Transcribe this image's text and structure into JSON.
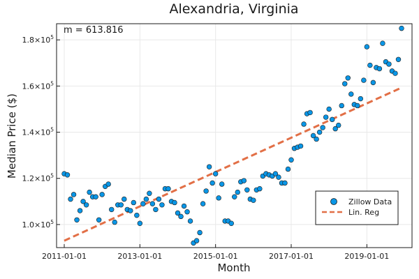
{
  "chart_data": {
    "type": "scatter",
    "title": "Alexandria, Virginia",
    "xlabel": "Month",
    "ylabel": "Median Price ($)",
    "x_tick_labels": [
      "2011-01-01",
      "2013-01-01",
      "2015-01-01",
      "2017-01-01",
      "2019-01-01"
    ],
    "y_tick_exponent": "5",
    "y_tick_mantissas": [
      "1.0×10",
      "1.2×10",
      "1.4×10",
      "1.6×10",
      "1.8×10"
    ],
    "y_ticks": [
      100000,
      120000,
      140000,
      160000,
      180000
    ],
    "ylim": [
      90000,
      187000
    ],
    "grid": true,
    "legend_position": "bottom-right",
    "annotation": "m = 613.816",
    "colors": {
      "scatter": "#0a96e6",
      "regression": "#e26f46",
      "grid": "#e8e8e8",
      "axis": "#1a1a1a"
    },
    "series": [
      {
        "name": "Zillow Data",
        "kind": "scatter",
        "x": [
          "2011-01",
          "2011-02",
          "2011-03",
          "2011-04",
          "2011-05",
          "2011-06",
          "2011-07",
          "2011-08",
          "2011-09",
          "2011-10",
          "2011-11",
          "2011-12",
          "2012-01",
          "2012-02",
          "2012-03",
          "2012-04",
          "2012-05",
          "2012-06",
          "2012-07",
          "2012-08",
          "2012-09",
          "2012-10",
          "2012-11",
          "2012-12",
          "2013-01",
          "2013-02",
          "2013-03",
          "2013-04",
          "2013-05",
          "2013-06",
          "2013-07",
          "2013-08",
          "2013-09",
          "2013-10",
          "2013-11",
          "2013-12",
          "2014-01",
          "2014-02",
          "2014-03",
          "2014-04",
          "2014-05",
          "2014-06",
          "2014-07",
          "2014-08",
          "2014-09",
          "2014-10",
          "2014-11",
          "2014-12",
          "2015-01",
          "2015-02",
          "2015-03",
          "2015-04",
          "2015-05",
          "2015-06",
          "2015-07",
          "2015-08",
          "2015-09",
          "2015-10",
          "2015-11",
          "2015-12",
          "2016-01",
          "2016-02",
          "2016-03",
          "2016-04",
          "2016-05",
          "2016-06",
          "2016-07",
          "2016-08",
          "2016-09",
          "2016-10",
          "2016-11",
          "2016-12",
          "2017-01",
          "2017-02",
          "2017-03",
          "2017-04",
          "2017-05",
          "2017-06",
          "2017-07",
          "2017-08",
          "2017-09",
          "2017-10",
          "2017-11",
          "2017-12",
          "2018-01",
          "2018-02",
          "2018-03",
          "2018-04",
          "2018-05",
          "2018-06",
          "2018-07",
          "2018-08",
          "2018-09",
          "2018-10",
          "2018-11",
          "2018-12",
          "2019-01",
          "2019-02",
          "2019-03",
          "2019-04",
          "2019-05",
          "2019-06",
          "2019-07",
          "2019-08",
          "2019-09",
          "2019-10",
          "2019-11",
          "2019-12"
        ],
        "y": [
          122000,
          121500,
          111000,
          113000,
          102000,
          106000,
          110000,
          108500,
          114000,
          112000,
          112000,
          102000,
          113000,
          116500,
          117500,
          106500,
          101000,
          108500,
          108500,
          111000,
          106500,
          106000,
          109500,
          104000,
          100500,
          109000,
          111000,
          113500,
          109000,
          106500,
          111000,
          108500,
          115500,
          115500,
          110000,
          109500,
          105000,
          103500,
          108000,
          105500,
          101500,
          92000,
          93000,
          96500,
          109000,
          114500,
          125000,
          118000,
          122000,
          111500,
          117500,
          101500,
          101500,
          100500,
          112000,
          114000,
          118500,
          119000,
          115000,
          111000,
          110500,
          115000,
          115500,
          121000,
          122000,
          121500,
          121000,
          122000,
          120500,
          118000,
          118000,
          124000,
          128000,
          133000,
          133500,
          134000,
          143500,
          148000,
          148500,
          138500,
          137000,
          140000,
          142000,
          146500,
          150000,
          145500,
          141500,
          143000,
          151500,
          161000,
          163500,
          156500,
          152000,
          151500,
          154500,
          162500,
          177000,
          169000,
          161500,
          168000,
          167500,
          178500,
          170500,
          169500,
          166500,
          165500,
          171500,
          185000
        ]
      },
      {
        "name": "Lin. Reg",
        "kind": "line",
        "x": [
          "2011-01",
          "2019-12"
        ],
        "y": [
          93000,
          159300
        ]
      }
    ]
  }
}
